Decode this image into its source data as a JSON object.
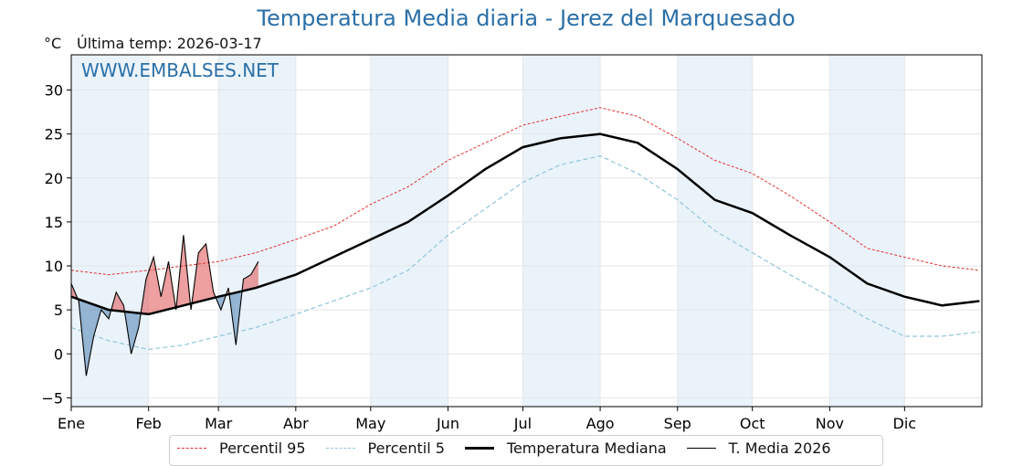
{
  "title": "Temperatura Media diaria - Jerez del Marquesado",
  "unit_label": "°C",
  "last_temp_label": "Última temp: 2026-03-17",
  "watermark": "WWW.EMBALSES.NET",
  "colors": {
    "title": "#2a6fa8",
    "p95": "#e03030",
    "p5": "#8fc5d9",
    "median": "#000000",
    "current": "#000000",
    "above": "#e05050",
    "below": "#4a7fb0",
    "band": "#eaf3fa"
  },
  "chart_data": {
    "type": "line",
    "title": "Temperatura Media diaria - Jerez del Marquesado",
    "ylabel": "°C",
    "xlabel": "",
    "ylim": [
      -6,
      34
    ],
    "yticks": [
      -5,
      0,
      5,
      10,
      15,
      20,
      25,
      30
    ],
    "ytick_labels": [
      "−5",
      "0",
      "5",
      "10",
      "15",
      "20",
      "25",
      "30"
    ],
    "xlim": [
      1,
      366
    ],
    "months": [
      "Ene",
      "Feb",
      "Mar",
      "Abr",
      "May",
      "Jun",
      "Jul",
      "Ago",
      "Sep",
      "Oct",
      "Nov",
      "Dic"
    ],
    "month_start_days": [
      1,
      32,
      60,
      91,
      121,
      152,
      182,
      213,
      244,
      274,
      305,
      335
    ],
    "grid": true,
    "legend_position": "bottom",
    "series": [
      {
        "name": "Percentil 95",
        "style": "dashed-thin-red",
        "x": [
          1,
          16,
          32,
          46,
          60,
          75,
          91,
          106,
          121,
          136,
          152,
          167,
          182,
          197,
          213,
          228,
          244,
          259,
          274,
          289,
          305,
          320,
          335,
          350,
          365
        ],
        "values": [
          9.5,
          9.0,
          9.5,
          10.0,
          10.5,
          11.5,
          13.0,
          14.5,
          17.0,
          19.0,
          22.0,
          24.0,
          26.0,
          27.0,
          28.0,
          27.0,
          24.5,
          22.0,
          20.5,
          18.0,
          15.0,
          12.0,
          11.0,
          10.0,
          9.5
        ]
      },
      {
        "name": "Percentil 5",
        "style": "dashed-thin-lightblue",
        "x": [
          1,
          16,
          32,
          46,
          60,
          75,
          91,
          106,
          121,
          136,
          152,
          167,
          182,
          197,
          213,
          228,
          244,
          259,
          274,
          289,
          305,
          320,
          335,
          350,
          365
        ],
        "values": [
          3.0,
          1.5,
          0.5,
          1.0,
          2.0,
          3.0,
          4.5,
          6.0,
          7.5,
          9.5,
          13.5,
          16.5,
          19.5,
          21.5,
          22.5,
          20.5,
          17.5,
          14.0,
          11.5,
          9.0,
          6.5,
          4.0,
          2.0,
          2.0,
          2.5
        ]
      },
      {
        "name": "Temperatura Mediana",
        "style": "solid-thick-black",
        "x": [
          1,
          16,
          32,
          46,
          60,
          75,
          91,
          106,
          121,
          136,
          152,
          167,
          182,
          197,
          213,
          228,
          244,
          259,
          274,
          289,
          305,
          320,
          335,
          350,
          365
        ],
        "values": [
          6.5,
          5.0,
          4.5,
          5.5,
          6.5,
          7.5,
          9.0,
          11.0,
          13.0,
          15.0,
          18.0,
          21.0,
          23.5,
          24.5,
          25.0,
          24.0,
          21.0,
          17.5,
          16.0,
          13.5,
          11.0,
          8.0,
          6.5,
          5.5,
          6.0
        ]
      },
      {
        "name": "T. Media 2026",
        "style": "solid-thin-black",
        "x": [
          1,
          4,
          7,
          10,
          13,
          16,
          19,
          22,
          25,
          28,
          31,
          34,
          37,
          40,
          43,
          46,
          49,
          52,
          55,
          58,
          61,
          64,
          67,
          70,
          73,
          76
        ],
        "values": [
          8.0,
          6.0,
          -2.5,
          2.0,
          5.0,
          4.0,
          7.0,
          5.5,
          0.0,
          3.0,
          8.5,
          11.0,
          6.5,
          10.5,
          5.0,
          13.5,
          5.0,
          11.5,
          12.5,
          7.0,
          5.0,
          7.5,
          1.0,
          8.5,
          9.0,
          10.5
        ]
      }
    ]
  },
  "legend": {
    "p95": "Percentil 95",
    "p5": "Percentil 5",
    "median": "Temperatura Mediana",
    "current": "T. Media 2026"
  }
}
